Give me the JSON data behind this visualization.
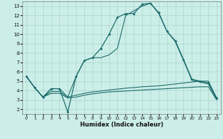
{
  "xlabel": "Humidex (Indice chaleur)",
  "xlim": [
    -0.5,
    23.5
  ],
  "ylim": [
    1.5,
    13.5
  ],
  "xticks": [
    0,
    1,
    2,
    3,
    4,
    5,
    6,
    7,
    8,
    9,
    10,
    11,
    12,
    13,
    14,
    15,
    16,
    17,
    18,
    19,
    20,
    21,
    22,
    23
  ],
  "yticks": [
    2,
    3,
    4,
    5,
    6,
    7,
    8,
    9,
    10,
    11,
    12,
    13
  ],
  "bg_color": "#cceee8",
  "grid_color": "#aad4ce",
  "line_color": "#1a6b6b",
  "line1_x": [
    0,
    1,
    2,
    3,
    4,
    5,
    6,
    7,
    8,
    9,
    10,
    11,
    12,
    13,
    14,
    15,
    16,
    17,
    18,
    19,
    20,
    21,
    22,
    23
  ],
  "line1_y": [
    5.5,
    4.3,
    3.3,
    4.2,
    4.2,
    1.7,
    5.5,
    7.2,
    7.5,
    8.5,
    10.0,
    11.8,
    12.2,
    12.2,
    13.2,
    13.3,
    12.3,
    10.3,
    9.3,
    7.3,
    5.2,
    5.0,
    4.8,
    3.2
  ],
  "line2_x": [
    0,
    1,
    2,
    3,
    4,
    5,
    6,
    7,
    8,
    9,
    10,
    11,
    12,
    13,
    14,
    15,
    16,
    17,
    18,
    19,
    20,
    21,
    22,
    23
  ],
  "line2_y": [
    5.5,
    4.3,
    3.3,
    4.2,
    4.2,
    3.3,
    5.5,
    7.2,
    7.5,
    7.5,
    7.8,
    8.5,
    12.0,
    12.5,
    13.0,
    13.3,
    12.2,
    10.3,
    9.2,
    7.2,
    5.1,
    4.9,
    4.7,
    3.1
  ],
  "line3_x": [
    0,
    1,
    2,
    3,
    4,
    5,
    6,
    7,
    8,
    9,
    10,
    11,
    12,
    13,
    14,
    15,
    16,
    17,
    18,
    19,
    20,
    21,
    22,
    23
  ],
  "line3_y": [
    5.5,
    4.3,
    3.3,
    3.9,
    3.9,
    3.3,
    3.5,
    3.7,
    3.85,
    3.95,
    4.05,
    4.15,
    4.25,
    4.32,
    4.4,
    4.45,
    4.5,
    4.6,
    4.7,
    4.8,
    4.9,
    5.0,
    5.0,
    3.2
  ],
  "line4_x": [
    0,
    1,
    2,
    3,
    4,
    5,
    6,
    7,
    8,
    9,
    10,
    11,
    12,
    13,
    14,
    15,
    16,
    17,
    18,
    19,
    20,
    21,
    22,
    23
  ],
  "line4_y": [
    5.5,
    4.3,
    3.3,
    3.7,
    3.7,
    3.2,
    3.3,
    3.5,
    3.65,
    3.75,
    3.85,
    3.9,
    3.95,
    4.0,
    4.05,
    4.1,
    4.15,
    4.2,
    4.25,
    4.3,
    4.35,
    4.4,
    4.4,
    3.0
  ]
}
